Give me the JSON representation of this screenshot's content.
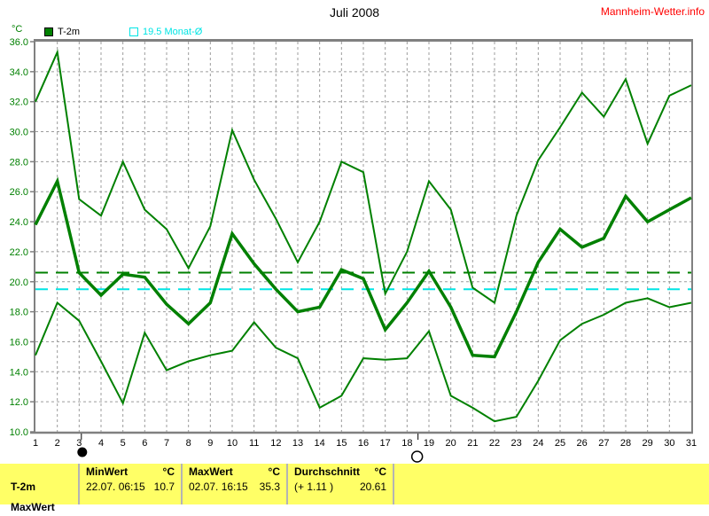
{
  "header": {
    "title": "Juli 2008",
    "site": "Mannheim-Wetter.info"
  },
  "axis": {
    "unit": "°C"
  },
  "legend": [
    {
      "label": "T-2m",
      "color": "#008000",
      "style": "filled"
    },
    {
      "label": "19.5 Monat-Ø",
      "color": "#00e5e5",
      "style": "outline"
    }
  ],
  "chart_data": {
    "type": "line",
    "title": "Juli 2008",
    "xlabel": "",
    "ylabel": "°C",
    "grid": true,
    "xlim": [
      1,
      31
    ],
    "ylim": [
      10,
      36
    ],
    "xticks": [
      1,
      2,
      3,
      4,
      5,
      6,
      7,
      8,
      9,
      10,
      11,
      12,
      13,
      14,
      15,
      16,
      17,
      18,
      19,
      20,
      21,
      22,
      23,
      24,
      25,
      26,
      27,
      28,
      29,
      30,
      31
    ],
    "yticks": [
      36,
      34,
      32,
      30,
      28,
      26,
      24,
      22,
      20,
      18,
      16,
      14,
      12,
      10
    ],
    "series": [
      {
        "name": "max",
        "color": "#008000",
        "width": 2,
        "values": [
          32.0,
          35.3,
          25.5,
          24.4,
          28.0,
          24.8,
          23.5,
          20.9,
          23.7,
          30.1,
          26.8,
          24.2,
          21.3,
          24.0,
          28.0,
          27.3,
          19.2,
          22.0,
          26.7,
          24.8,
          19.6,
          18.6,
          24.4,
          28.1,
          30.3,
          32.6,
          31.0,
          33.5,
          29.2,
          32.4,
          33.1
        ]
      },
      {
        "name": "mean",
        "color": "#008000",
        "width": 3.5,
        "values": [
          23.8,
          26.7,
          20.6,
          19.1,
          20.5,
          20.3,
          18.5,
          17.2,
          18.6,
          23.2,
          21.2,
          19.5,
          18.0,
          18.3,
          20.8,
          20.2,
          16.8,
          18.6,
          20.7,
          18.3,
          15.1,
          15.0,
          18.0,
          21.3,
          23.5,
          22.3,
          22.9,
          25.7,
          24.0,
          24.8,
          25.6
        ]
      },
      {
        "name": "min",
        "color": "#008000",
        "width": 2,
        "values": [
          15.1,
          18.6,
          17.4,
          14.7,
          11.9,
          16.6,
          14.1,
          14.7,
          15.1,
          15.4,
          17.3,
          15.6,
          14.9,
          11.6,
          12.4,
          14.9,
          14.8,
          14.9,
          16.7,
          12.4,
          11.6,
          10.7,
          11.0,
          13.4,
          16.1,
          17.2,
          17.8,
          18.6,
          18.9,
          18.3,
          18.6
        ]
      }
    ],
    "reference_lines": [
      {
        "label": "Durchschnitt",
        "value": 20.61,
        "color": "#008000"
      },
      {
        "label": "Monat-Ø",
        "value": 19.5,
        "color": "#00e5e5"
      }
    ],
    "moon_markers": [
      {
        "day": 3.1,
        "phase": "new"
      },
      {
        "day": 18.5,
        "phase": "full"
      }
    ]
  },
  "table": {
    "row_label": "T-2m",
    "clipped_next_row_label": "MaxWert",
    "columns": [
      {
        "header": "MinWert",
        "unit": "°C",
        "value_left": "22.07.  06:15",
        "value_right": "10.7"
      },
      {
        "header": "MaxWert",
        "unit": "°C",
        "value_left": "02.07.  16:15",
        "value_right": "35.3"
      },
      {
        "header": "Durchschnitt",
        "unit": "°C",
        "value_left": "(+ 1.11 )",
        "value_right": "20.61"
      }
    ]
  }
}
